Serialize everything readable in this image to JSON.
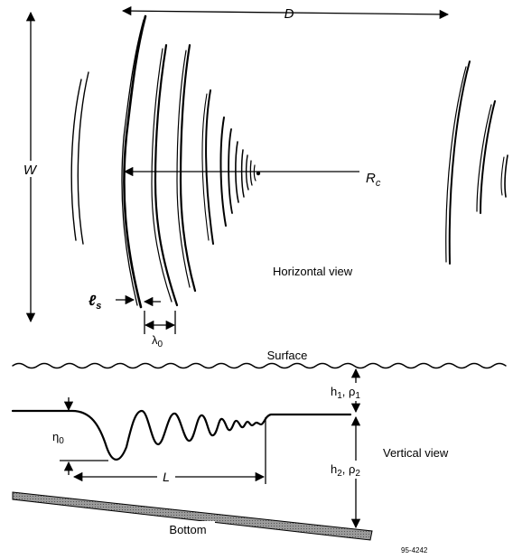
{
  "horizontal_view": {
    "label_D": "D",
    "label_W": "W",
    "label_Rc_main": "R",
    "label_Rc_sub": "c",
    "label_ls_main": "ℓ",
    "label_ls_sub": "s",
    "label_lambda_main": "λ",
    "label_lambda_sub": "0",
    "view_label": "Horizontal view"
  },
  "vertical_view": {
    "surface_label": "Surface",
    "h1_label": "h",
    "h1_sub": "1",
    "rho1_label": ", ρ",
    "rho1_sub": "1",
    "h2_label": "h",
    "h2_sub": "2",
    "rho2_label": ", ρ",
    "rho2_sub": "2",
    "eta_main": "η",
    "eta_sub": "0",
    "L_label": "L",
    "view_label": "Vertical view",
    "bottom_label": "Bottom"
  },
  "figure_id": "95-4242",
  "colors": {
    "ink": "#000000",
    "bottom_fill": "#8a8a8a"
  }
}
